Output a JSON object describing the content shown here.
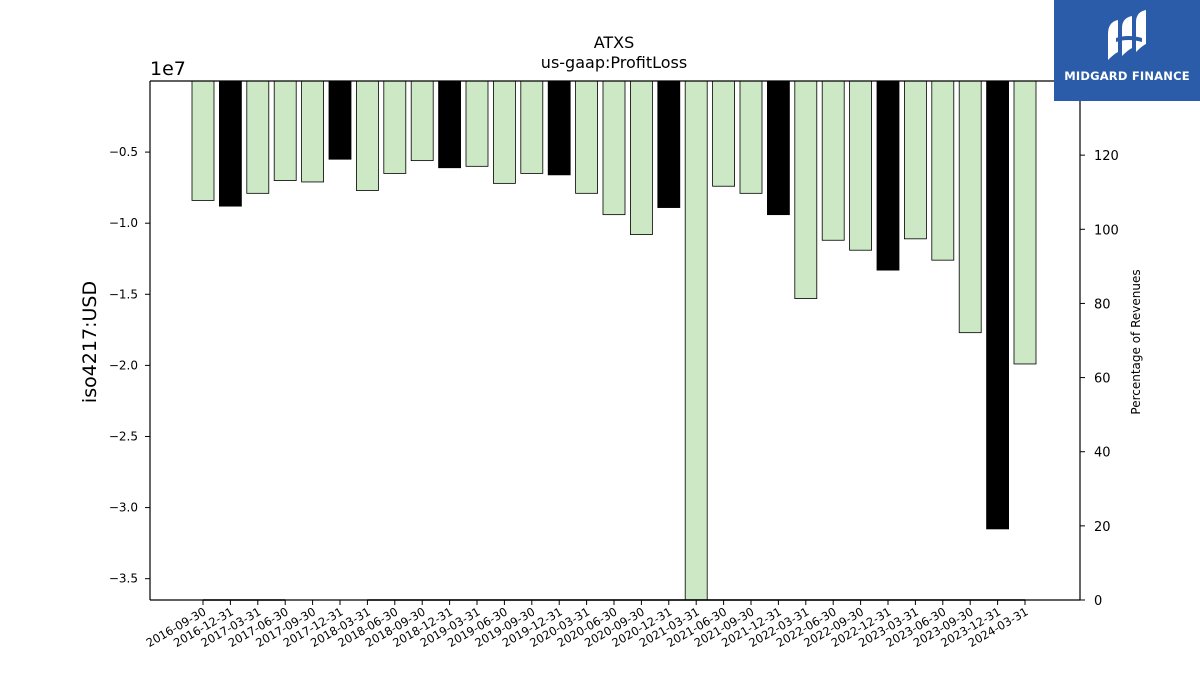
{
  "brand": {
    "name": "MIDGARD FINANCE",
    "bg_color": "#2a5caa",
    "icon": "midgard-logo-icon"
  },
  "chart_data": {
    "type": "bar",
    "title": "ATXS",
    "subtitle": "us-gaap:ProfitLoss",
    "ylabel": "iso4217:USD",
    "y_multiplier_label": "1e7",
    "y2label": "Percentage of Revenues",
    "ylim": [
      -36500000,
      0
    ],
    "y2lim": [
      0,
      140
    ],
    "yticks": [
      -5000000,
      -10000000,
      -15000000,
      -20000000,
      -25000000,
      -30000000,
      -35000000
    ],
    "ytick_labels": [
      "−0.5",
      "−1.0",
      "−1.5",
      "−2.0",
      "−2.5",
      "−3.0",
      "−3.5"
    ],
    "y2ticks": [
      0,
      20,
      40,
      60,
      80,
      100,
      120
    ],
    "y2tick_labels": [
      "0",
      "20",
      "40",
      "60",
      "80",
      "100",
      "120"
    ],
    "categories": [
      "2016-09-30",
      "2016-12-31",
      "2017-03-31",
      "2017-06-30",
      "2017-09-30",
      "2017-12-31",
      "2018-03-31",
      "2018-06-30",
      "2018-09-30",
      "2018-12-31",
      "2019-03-31",
      "2019-06-30",
      "2019-09-30",
      "2019-12-31",
      "2020-03-31",
      "2020-06-30",
      "2020-09-30",
      "2020-12-31",
      "2021-03-31",
      "2021-06-30",
      "2021-09-30",
      "2021-12-31",
      "2022-03-31",
      "2022-06-30",
      "2022-09-30",
      "2022-12-31",
      "2023-03-31",
      "2023-06-30",
      "2023-09-30",
      "2023-12-31",
      "2024-03-31"
    ],
    "values": [
      -8400000,
      -8800000,
      -7900000,
      -7000000,
      -7100000,
      -5500000,
      -7700000,
      -6500000,
      -5600000,
      -6100000,
      -6000000,
      -7200000,
      -6500000,
      -6600000,
      -7900000,
      -9400000,
      -10800000,
      -8900000,
      -36500000,
      -7400000,
      -7900000,
      -9400000,
      -15300000,
      -11200000,
      -11900000,
      -13300000,
      -11100000,
      -12600000,
      -17700000,
      -31500000,
      -19900000
    ],
    "bar_kind": [
      "quarterly",
      "annual",
      "quarterly",
      "quarterly",
      "quarterly",
      "annual",
      "quarterly",
      "quarterly",
      "quarterly",
      "annual",
      "quarterly",
      "quarterly",
      "quarterly",
      "annual",
      "quarterly",
      "quarterly",
      "quarterly",
      "annual",
      "quarterly",
      "quarterly",
      "quarterly",
      "annual",
      "quarterly",
      "quarterly",
      "quarterly",
      "annual",
      "quarterly",
      "quarterly",
      "quarterly",
      "annual",
      "quarterly"
    ],
    "colors": {
      "quarterly": "#cce8c4",
      "annual": "#000000",
      "edge": "#000000"
    },
    "pct_of_revenues_line": [
      0,
      0,
      0,
      0,
      null,
      null,
      0,
      0,
      0,
      0,
      0,
      0,
      0,
      0,
      0,
      0,
      0,
      0,
      0,
      0,
      0,
      0,
      0,
      0,
      0,
      0,
      0,
      0,
      0,
      0,
      0
    ],
    "grid": false,
    "legend": "none"
  }
}
